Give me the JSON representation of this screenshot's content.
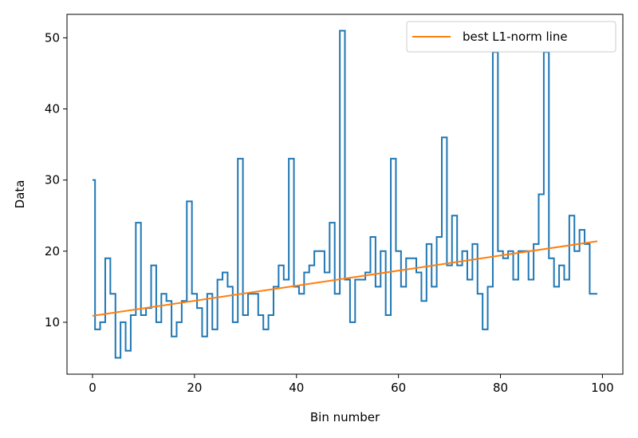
{
  "chart_data": {
    "type": "line",
    "xlabel": "Bin number",
    "ylabel": "Data",
    "xlim": [
      -5,
      104
    ],
    "ylim": [
      2.7,
      53.3
    ],
    "xticks": [
      0,
      20,
      40,
      60,
      80,
      100
    ],
    "yticks": [
      10,
      20,
      30,
      40,
      50
    ],
    "grid": false,
    "legend_position": "top-right",
    "series": [
      {
        "style": "step",
        "color": "#1f77b4",
        "x": [
          0,
          1,
          2,
          3,
          4,
          5,
          6,
          7,
          8,
          9,
          10,
          11,
          12,
          13,
          14,
          15,
          16,
          17,
          18,
          19,
          20,
          21,
          22,
          23,
          24,
          25,
          26,
          27,
          28,
          29,
          30,
          31,
          32,
          33,
          34,
          35,
          36,
          37,
          38,
          39,
          40,
          41,
          42,
          43,
          44,
          45,
          46,
          47,
          48,
          49,
          50,
          51,
          52,
          53,
          54,
          55,
          56,
          57,
          58,
          59,
          60,
          61,
          62,
          63,
          64,
          65,
          66,
          67,
          68,
          69,
          70,
          71,
          72,
          73,
          74,
          75,
          76,
          77,
          78,
          79,
          80,
          81,
          82,
          83,
          84,
          85,
          86,
          87,
          88,
          89,
          90,
          91,
          92,
          93,
          94,
          95,
          96,
          97,
          98,
          99
        ],
        "values": [
          30,
          9,
          10,
          19,
          14,
          5,
          10,
          6,
          11,
          24,
          11,
          12,
          18,
          10,
          14,
          13,
          8,
          10,
          13,
          27,
          14,
          12,
          8,
          14,
          9,
          16,
          17,
          15,
          10,
          33,
          11,
          14,
          14,
          11,
          9,
          11,
          15,
          18,
          16,
          33,
          15,
          14,
          17,
          18,
          20,
          20,
          17,
          24,
          14,
          51,
          16,
          10,
          16,
          16,
          17,
          22,
          15,
          20,
          11,
          33,
          20,
          15,
          19,
          19,
          17,
          13,
          21,
          15,
          22,
          36,
          18,
          25,
          18,
          20,
          16,
          21,
          14,
          9,
          15,
          48,
          20,
          19,
          20,
          16,
          20,
          20,
          16,
          21,
          28,
          48,
          19,
          15,
          18,
          16,
          25,
          20,
          23,
          21,
          14,
          14
        ]
      },
      {
        "name": "best L1-norm line",
        "style": "line",
        "color": "#ff7f0e",
        "x": [
          0,
          99
        ],
        "values": [
          10.9,
          21.4
        ]
      }
    ]
  }
}
